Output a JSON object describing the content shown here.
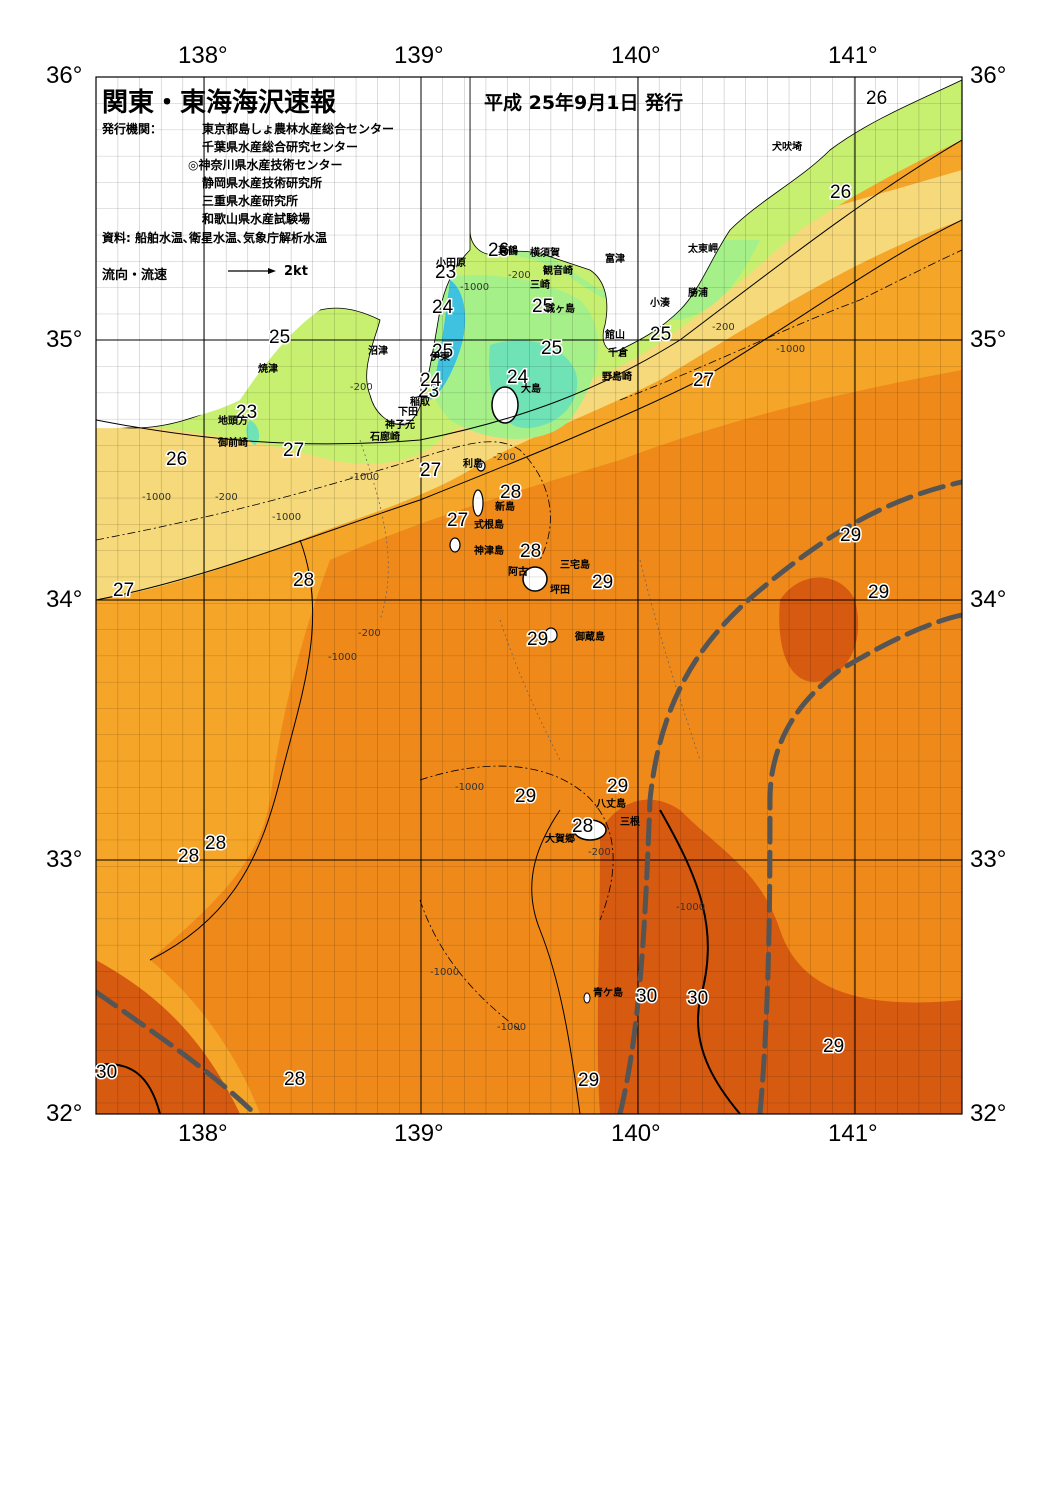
{
  "header": {
    "title": "関東・東海海沢速報",
    "date": "平成 25年9月1日 発行",
    "issuer_label": "発行機関：",
    "organizations": [
      "東京都島しょ農林水産総合センター",
      "千葉県水産総合研究センター",
      "◎神奈川県水産技術センター",
      "静岡県水産技術研究所",
      "三重県水産研究所",
      "和歌山県水産試験場"
    ],
    "sources": "資料: 船舶水温､衛星水温､気象庁解析水温",
    "current_legend": "流向・流速",
    "current_scale": "2kt"
  },
  "axes": {
    "lon_labels": [
      "138°",
      "139°",
      "140°",
      "141°"
    ],
    "lat_labels_left": [
      "36°",
      "35°",
      "34°",
      "33°",
      "32°"
    ],
    "lat_labels_right": [
      "36°",
      "35°",
      "34°",
      "33°",
      "32°"
    ]
  },
  "places": {
    "inubosaki": "犬吠埼",
    "taitozaki": "太東岬",
    "katsuura": "勝浦",
    "kominato": "小湊",
    "tateyama": "館山",
    "chikura": "千倉",
    "nojimazaki": "野島崎",
    "futtsu": "富津",
    "yokosuka": "横須賀",
    "kannonzaki": "観音崎",
    "jogashima": "城ヶ島",
    "misaki": "三崎",
    "odawara": "小田原",
    "manazuru": "真鶴",
    "ito": "伊東",
    "inatori": "稲取",
    "shimoda": "下田",
    "mikomoto": "神子元",
    "irozaki": "石廊崎",
    "numazu": "沼津",
    "yaizu": "焼津",
    "jitogata": "地頭方",
    "omaezaki": "御前崎",
    "oshima": "大島",
    "toshima": "利島",
    "niijima": "新島",
    "shikinejima": "式根島",
    "kozushima": "神津島",
    "miyakejima": "三宅島",
    "ako": "阿古",
    "tsubota": "坪田",
    "mikurajima": "御蔵島",
    "hachijojima": "八丈島",
    "mitsune": "三根",
    "okago": "大賀郷",
    "aogashima": "青ケ島"
  },
  "isotherm_labels": [
    "26",
    "26",
    "23",
    "26",
    "23",
    "24",
    "25",
    "25",
    "25",
    "25",
    "24",
    "25",
    "24",
    "23",
    "25",
    "27",
    "25",
    "26",
    "27",
    "27",
    "28",
    "27",
    "28",
    "29",
    "29",
    "27",
    "28",
    "29",
    "29",
    "29",
    "28",
    "28",
    "30",
    "30",
    "30",
    "29",
    "28",
    "29"
  ],
  "depth_labels": [
    "-200",
    "-1000",
    "-200",
    "-1000",
    "-200",
    "-1000",
    "-200",
    "-1000",
    "-200",
    "-1000",
    "-1000",
    "-1000",
    "-200",
    "-1000",
    "-1000",
    "-200",
    "-1000"
  ],
  "colors": {
    "t23": "#3ec2e0",
    "t24": "#6fe3b5",
    "t25": "#a6f08a",
    "t26": "#c8f070",
    "t27": "#f6d97a",
    "t28": "#f5a528",
    "t29": "#ef8a1a",
    "t30": "#d65a10",
    "kuroshio_axis": "#555555",
    "land": "#ffffff"
  }
}
